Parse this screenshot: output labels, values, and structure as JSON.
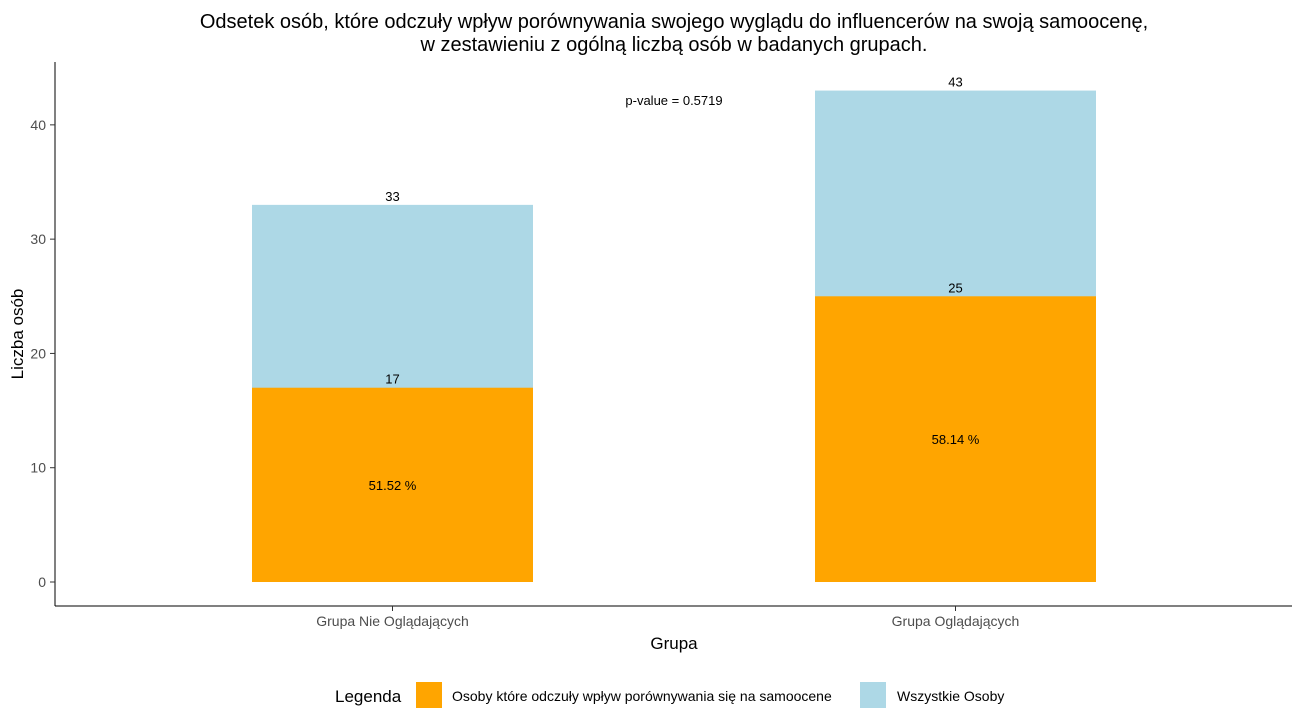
{
  "chart_data": {
    "type": "bar",
    "stacked": "overlay",
    "title_line1": "Odsetek osób, które odczuły wpływ porównywania swojego wyglądu do influencerów na swoją samoocenę,",
    "title_line2": "w zestawieniu z ogólną liczbą osób w badanych grupach.",
    "xlabel": "Grupa",
    "ylabel": "Liczba osób",
    "ylim": [
      -2.1,
      45.5
    ],
    "yticks": [
      0,
      10,
      20,
      30,
      40
    ],
    "categories": [
      "Grupa Nie Oglądających",
      "Grupa Oglądających"
    ],
    "series": [
      {
        "name": "Wszystkie Osoby",
        "values": [
          33,
          43
        ],
        "color": "#add8e6"
      },
      {
        "name": "Osoby które odczuły wpływ porównywania się na samoocene",
        "values": [
          17,
          25
        ],
        "color": "#ffa500"
      }
    ],
    "percent_labels": [
      "51.52 %",
      "58.14 %"
    ],
    "annotation": "p-value = 0.5719",
    "legend": {
      "title": "Legenda",
      "position": "bottom",
      "items": [
        {
          "label": "Osoby które odczuły wpływ porównywania się na samoocene",
          "color": "#ffa500"
        },
        {
          "label": "Wszystkie Osoby",
          "color": "#add8e6"
        }
      ]
    },
    "grid": false
  }
}
